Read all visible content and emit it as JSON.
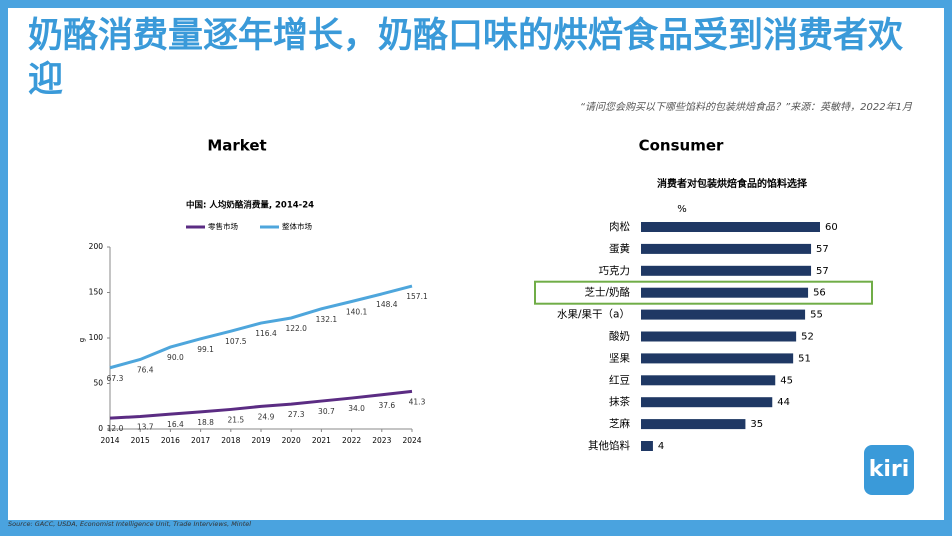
{
  "title": "奶酪消费量逐年增长，奶酪口味的烘焙食品受到消费者欢迎",
  "quote": "“请问您会购买以下哪些馅料的包装烘焙食品？”来源：英敏特，2022年1月",
  "source": "Source: GACC, USDA, Economist Intelligence Unit, Trade Interviews, Mintel",
  "logo": "kiri",
  "chart_data": [
    {
      "type": "line",
      "heading": "Market",
      "title": "中国: 人均奶酪消费量, 2014-24",
      "ylabel": "g",
      "x": [
        2014,
        2015,
        2016,
        2017,
        2018,
        2019,
        2020,
        2021,
        2022,
        2023,
        2024
      ],
      "xlim": [
        2014,
        2024
      ],
      "xticks": [
        2014,
        2015,
        2016,
        2017,
        2018,
        2019,
        2020,
        2021,
        2022,
        2023,
        2024
      ],
      "ylim": [
        0,
        200
      ],
      "yticks": [
        0,
        50,
        100,
        150,
        200
      ],
      "series": [
        {
          "name": "零售市场",
          "color": "#5b2c83",
          "values": [
            12.0,
            13.7,
            16.4,
            18.8,
            21.5,
            24.9,
            27.3,
            30.7,
            34.0,
            37.6,
            41.3
          ],
          "value_labels": [
            "12.0",
            "13.7",
            "16.4",
            "18.8",
            "21.5",
            "24.9",
            "27.3",
            "30.7",
            "34.0",
            "37.6",
            "41.3"
          ]
        },
        {
          "name": "整体市场",
          "color": "#4ea6dc",
          "values": [
            67.3,
            76.4,
            90.0,
            99.1,
            107.5,
            116.4,
            122.0,
            132.1,
            140.1,
            148.4,
            157.1
          ],
          "value_labels": [
            "67.3",
            "76.4",
            "90.0",
            "99.1",
            "107.5",
            "116.4",
            "122.0",
            "132.1",
            "140.1",
            "148.4",
            "157.1"
          ]
        }
      ]
    },
    {
      "type": "hbar",
      "heading": "Consumer",
      "title": "消费者对包装烘焙食品的馅料选择",
      "unit": "%",
      "categories": [
        "肉松",
        "蛋黄",
        "巧克力",
        "芝士/奶酪",
        "水果/果干（a）",
        "酸奶",
        "坚果",
        "红豆",
        "抹茶",
        "芝麻",
        "其他馅料"
      ],
      "values": [
        60,
        57,
        57,
        56,
        55,
        52,
        51,
        45,
        44,
        35,
        4
      ],
      "color": "#1f3864",
      "highlight": 3,
      "highlight_color": "#70ad47"
    }
  ]
}
